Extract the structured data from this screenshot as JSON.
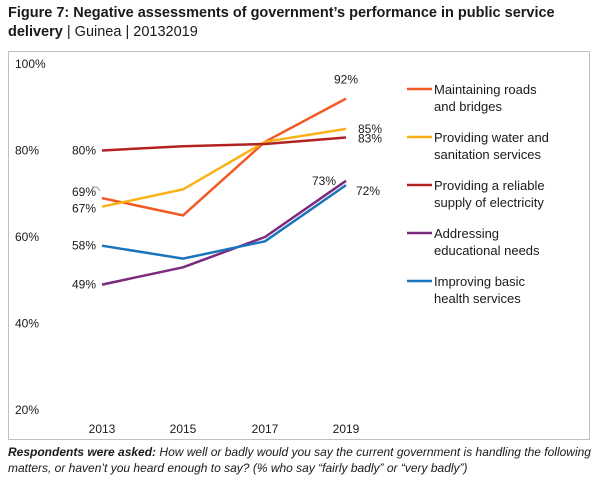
{
  "figure": {
    "title": "Figure 7: Negative assessments of government’s performance in public service delivery",
    "separator_1": "|",
    "country": "Guinea",
    "separator_2": "|",
    "years": "20132019"
  },
  "footnote": {
    "lead": "Respondents were asked:",
    "text": "How well or badly would you say the current government is handling the following matters, or haven’t you heard enough to say? (% who say “fairly badly” or “very badly”)"
  },
  "chart_data": {
    "type": "line",
    "x": [
      2013,
      2015,
      2017,
      2019
    ],
    "ylim": [
      20,
      100
    ],
    "y_ticks": [
      "20%",
      "40%",
      "60%",
      "80%",
      "100%"
    ],
    "x_ticks": [
      "2013",
      "2015",
      "2017",
      "2019"
    ],
    "grid": false,
    "legend_position": "right",
    "series": [
      {
        "name": "Maintaining roads and bridges",
        "legend_lines": [
          "Maintaining roads",
          "and bridges"
        ],
        "color": "#f15a24",
        "values": [
          69,
          65,
          82,
          92
        ],
        "labels": {
          "0": "69%",
          "3": "92%"
        }
      },
      {
        "name": "Providing water and sanitation services",
        "legend_lines": [
          "Providing water and",
          "sanitation services"
        ],
        "color": "#fbb116",
        "values": [
          67,
          71,
          82,
          85
        ],
        "labels": {
          "0": "67%",
          "3": "85%"
        }
      },
      {
        "name": "Providing a reliable supply of electricity",
        "legend_lines": [
          "Providing a reliable",
          "supply of electricity"
        ],
        "color": "#b22222",
        "values": [
          80,
          81,
          81.5,
          83
        ],
        "labels": {
          "0": "80%",
          "3": "83%"
        }
      },
      {
        "name": "Addressing educational needs",
        "legend_lines": [
          "Addressing",
          "educational needs"
        ],
        "color": "#7b2a7e",
        "values": [
          49,
          53,
          60,
          73
        ],
        "labels": {
          "0": "49%",
          "3": "73%"
        }
      },
      {
        "name": "Improving basic health services",
        "legend_lines": [
          "Improving basic",
          "health services"
        ],
        "color": "#1a75bc",
        "values": [
          58,
          55,
          59,
          72
        ],
        "labels": {
          "0": "58%",
          "3": "72%"
        }
      }
    ]
  }
}
